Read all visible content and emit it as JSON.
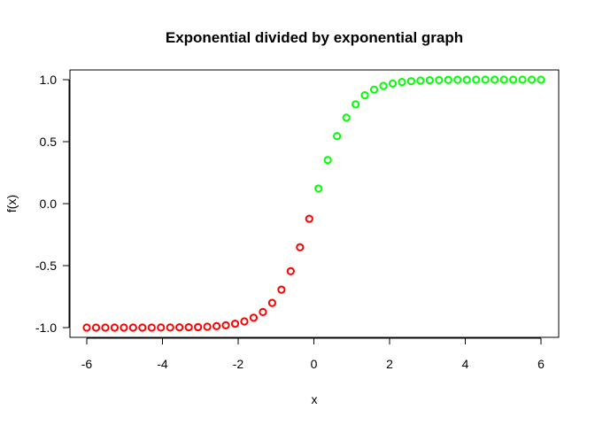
{
  "chart_data": {
    "type": "scatter",
    "title": "Exponential divided by exponential graph",
    "xlabel": "x",
    "ylabel": "f(x)",
    "xlim": [
      -6,
      6
    ],
    "ylim": [
      -1,
      1
    ],
    "x_ticks": [
      "-6",
      "-4",
      "-2",
      "0",
      "2",
      "4",
      "6"
    ],
    "y_ticks": [
      "-1.0",
      "-0.5",
      "0.0",
      "0.5",
      "1.0"
    ],
    "grid": false,
    "legend": "none",
    "series": [
      {
        "color": "#ff0000",
        "marker": "open-circle",
        "x": [
          -6.0,
          -5.755,
          -5.51,
          -5.265,
          -5.02,
          -4.776,
          -4.531,
          -4.286,
          -4.041,
          -3.796,
          -3.551,
          -3.306,
          -3.061,
          -2.816,
          -2.571,
          -2.327,
          -2.082,
          -1.837,
          -1.592,
          -1.347,
          -1.102,
          -0.857,
          -0.612,
          -0.367,
          -0.122
        ],
        "y": [
          -1.0,
          -1.0,
          -1.0,
          -1.0,
          -1.0,
          -1.0,
          -1.0,
          -1.0,
          -0.999,
          -0.999,
          -0.998,
          -0.997,
          -0.996,
          -0.993,
          -0.988,
          -0.981,
          -0.969,
          -0.95,
          -0.92,
          -0.874,
          -0.801,
          -0.694,
          -0.545,
          -0.352,
          -0.122
        ]
      },
      {
        "color": "#00ff00",
        "marker": "open-circle",
        "x": [
          0.122,
          0.367,
          0.612,
          0.857,
          1.102,
          1.347,
          1.592,
          1.837,
          2.082,
          2.327,
          2.571,
          2.816,
          3.061,
          3.306,
          3.551,
          3.796,
          4.041,
          4.286,
          4.531,
          4.776,
          5.02,
          5.265,
          5.51,
          5.755,
          6.0
        ],
        "y": [
          0.122,
          0.352,
          0.545,
          0.694,
          0.801,
          0.874,
          0.92,
          0.95,
          0.969,
          0.981,
          0.988,
          0.993,
          0.996,
          0.997,
          0.998,
          0.999,
          0.999,
          1.0,
          1.0,
          1.0,
          1.0,
          1.0,
          1.0,
          1.0,
          1.0
        ]
      }
    ]
  }
}
